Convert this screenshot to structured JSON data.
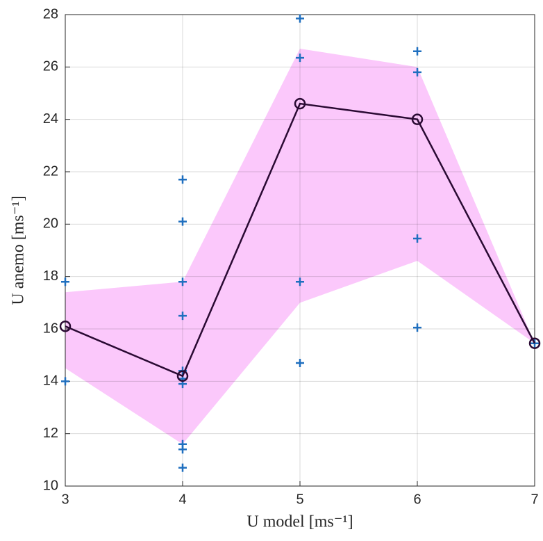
{
  "chart_data": {
    "type": "line",
    "x_label": "U model   [ms⁻¹]",
    "y_label": "U anemo   [ms⁻¹]",
    "x": [
      3,
      4,
      5,
      6,
      7
    ],
    "band": {
      "color": "#fbc8fb",
      "upper": [
        17.4,
        17.8,
        26.7,
        26.0,
        15.45
      ],
      "lower": [
        14.5,
        11.6,
        17.0,
        18.6,
        15.45
      ]
    },
    "mean": {
      "color": "#2a0a33",
      "values": [
        16.1,
        14.2,
        24.6,
        24.0,
        15.45
      ]
    },
    "points": {
      "color": "#1f6fbf",
      "x": [
        3,
        3,
        4,
        4,
        4,
        4,
        4,
        4,
        4,
        4,
        4,
        4,
        5,
        5,
        5,
        5,
        6,
        6,
        6,
        6,
        7
      ],
      "y": [
        17.8,
        14.0,
        21.7,
        20.1,
        17.8,
        16.5,
        14.4,
        14.1,
        13.9,
        11.6,
        11.4,
        10.7,
        27.85,
        26.35,
        17.8,
        14.7,
        26.6,
        25.8,
        19.45,
        16.05,
        15.45
      ]
    },
    "xlim": [
      3,
      7
    ],
    "xticks": [
      3,
      4,
      5,
      6,
      7
    ],
    "ylim": [
      10,
      28
    ],
    "yticks": [
      10,
      12,
      14,
      16,
      18,
      20,
      22,
      24,
      26,
      28
    ],
    "grid": true
  }
}
